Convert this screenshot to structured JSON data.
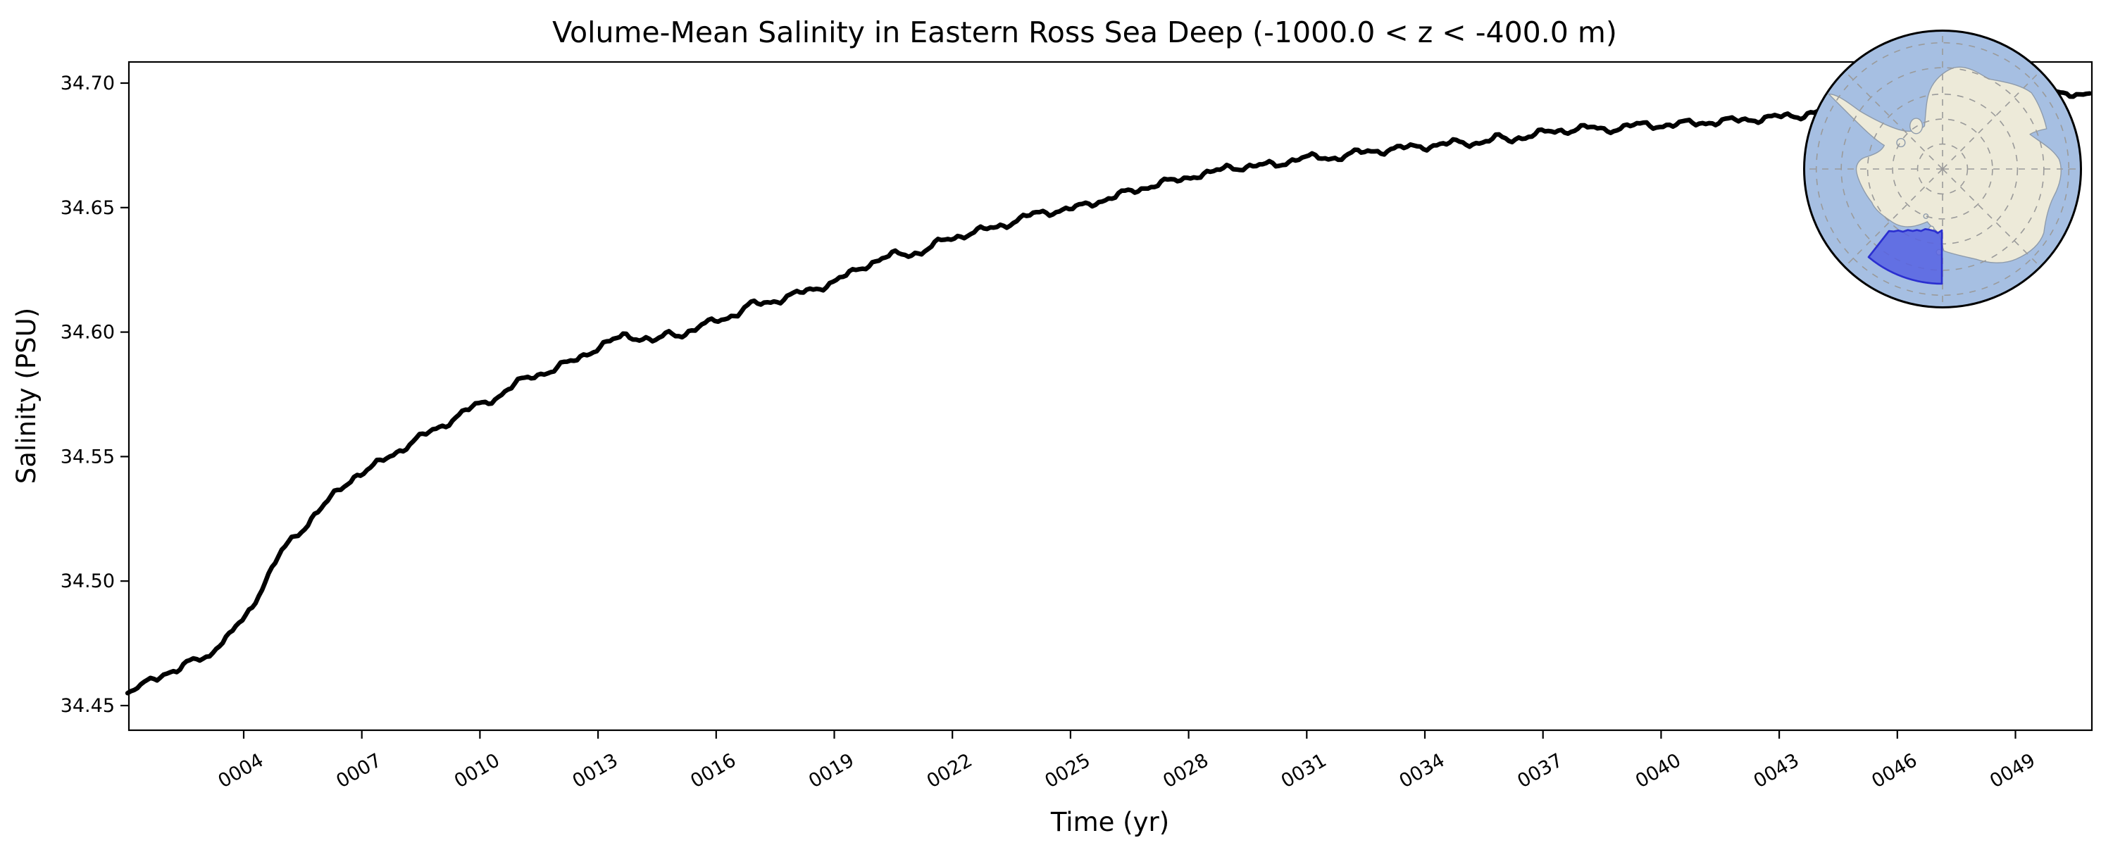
{
  "figure": {
    "background": "#ffffff"
  },
  "chart_data": {
    "type": "line",
    "title": "Volume-Mean Salinity in Eastern Ross Sea Deep (-1000.0 < z < -400.0 m)",
    "xlabel": "Time (yr)",
    "ylabel": "Salinity (PSU)",
    "xlim": [
      1.05,
      50.94
    ],
    "ylim": [
      34.44,
      34.709
    ],
    "grid": false,
    "legend": "none",
    "xticks": {
      "values": [
        4,
        7,
        10,
        13,
        16,
        19,
        22,
        25,
        28,
        31,
        34,
        37,
        40,
        43,
        46,
        49
      ],
      "labels": [
        "0004",
        "0007",
        "0010",
        "0013",
        "0016",
        "0019",
        "0022",
        "0025",
        "0028",
        "0031",
        "0034",
        "0037",
        "0040",
        "0043",
        "0046",
        "0049"
      ],
      "rotation_deg": -30
    },
    "yticks": {
      "values": [
        34.45,
        34.5,
        34.55,
        34.6,
        34.65,
        34.7
      ],
      "labels": [
        "34.45",
        "34.50",
        "34.55",
        "34.60",
        "34.65",
        "34.70"
      ]
    },
    "series": [
      {
        "name": "volume-mean salinity",
        "color": "#000000",
        "line_width": 6.5,
        "points": [
          [
            1.05,
            34.455
          ],
          [
            1.4,
            34.458
          ],
          [
            1.8,
            34.4612
          ],
          [
            2.05,
            34.4635
          ],
          [
            2.3,
            34.4645
          ],
          [
            2.6,
            34.467
          ],
          [
            2.9,
            34.4688
          ],
          [
            3.1,
            34.4695
          ],
          [
            3.4,
            34.4755
          ],
          [
            3.7,
            34.479
          ],
          [
            4.0,
            34.485
          ],
          [
            4.25,
            34.49
          ],
          [
            4.55,
            34.501
          ],
          [
            4.8,
            34.507
          ],
          [
            5.0,
            34.513
          ],
          [
            5.4,
            34.519
          ],
          [
            5.75,
            34.526
          ],
          [
            6.2,
            34.533
          ],
          [
            6.8,
            34.542
          ],
          [
            7.3,
            34.546
          ],
          [
            7.9,
            34.552
          ],
          [
            8.4,
            34.557
          ],
          [
            9.0,
            34.562
          ],
          [
            9.6,
            34.568
          ],
          [
            10.0,
            34.571
          ],
          [
            10.45,
            34.574
          ],
          [
            11.0,
            34.58
          ],
          [
            11.4,
            34.583
          ],
          [
            11.75,
            34.584
          ],
          [
            12.3,
            34.588
          ],
          [
            12.7,
            34.5915
          ],
          [
            13.2,
            34.595
          ],
          [
            13.66,
            34.599
          ],
          [
            14.0,
            34.598
          ],
          [
            14.43,
            34.596
          ],
          [
            14.86,
            34.6
          ],
          [
            15.15,
            34.599
          ],
          [
            15.6,
            34.602
          ],
          [
            16.0,
            34.605
          ],
          [
            16.5,
            34.607
          ],
          [
            16.9,
            34.611
          ],
          [
            17.6,
            34.613
          ],
          [
            18.2,
            34.616
          ],
          [
            19.0,
            34.62
          ],
          [
            19.8,
            34.627
          ],
          [
            20.5,
            34.631
          ],
          [
            21.2,
            34.632
          ],
          [
            21.8,
            34.637
          ],
          [
            22.5,
            34.64
          ],
          [
            23.1,
            34.642
          ],
          [
            24.0,
            34.647
          ],
          [
            24.7,
            34.649
          ],
          [
            25.2,
            34.65
          ],
          [
            25.8,
            34.653
          ],
          [
            26.2,
            34.655
          ],
          [
            26.7,
            34.657
          ],
          [
            27.25,
            34.66
          ],
          [
            27.85,
            34.661
          ],
          [
            28.1,
            34.663
          ],
          [
            28.6,
            34.664
          ],
          [
            29.0,
            34.666
          ],
          [
            29.9,
            34.667
          ],
          [
            30.2,
            34.667
          ],
          [
            30.8,
            34.67
          ],
          [
            31.7,
            34.67
          ],
          [
            32.3,
            34.672
          ],
          [
            32.9,
            34.673
          ],
          [
            33.5,
            34.674
          ],
          [
            34.2,
            34.675
          ],
          [
            34.8,
            34.676
          ],
          [
            35.3,
            34.676
          ],
          [
            35.9,
            34.678
          ],
          [
            36.15,
            34.677
          ],
          [
            36.6,
            34.679
          ],
          [
            37.0,
            34.68
          ],
          [
            37.6,
            34.681
          ],
          [
            37.85,
            34.682
          ],
          [
            38.2,
            34.682
          ],
          [
            38.55,
            34.681
          ],
          [
            39.2,
            34.683
          ],
          [
            39.9,
            34.683
          ],
          [
            40.9,
            34.684
          ],
          [
            41.9,
            34.685
          ],
          [
            42.7,
            34.686
          ],
          [
            43.5,
            34.687
          ],
          [
            43.8,
            34.688
          ],
          [
            45.0,
            34.69
          ],
          [
            46.0,
            34.691
          ],
          [
            47.0,
            34.692
          ],
          [
            48.0,
            34.693
          ],
          [
            49.0,
            34.694
          ],
          [
            50.0,
            34.695
          ],
          [
            50.94,
            34.696
          ]
        ]
      }
    ],
    "inset_map": {
      "name": "antarctica-south-polar-inset",
      "projection": "south polar stereographic",
      "ocean_color": "#a6bfe2",
      "land_color": "#edead9",
      "coast_color": "#8e9bab",
      "graticule_color": "#9a9a9a",
      "border_color": "#000000",
      "highlight_region": {
        "name": "Eastern Ross Sea",
        "fill": "#5661e3",
        "outline": "#2b2fd0",
        "opacity": 0.85
      }
    }
  }
}
